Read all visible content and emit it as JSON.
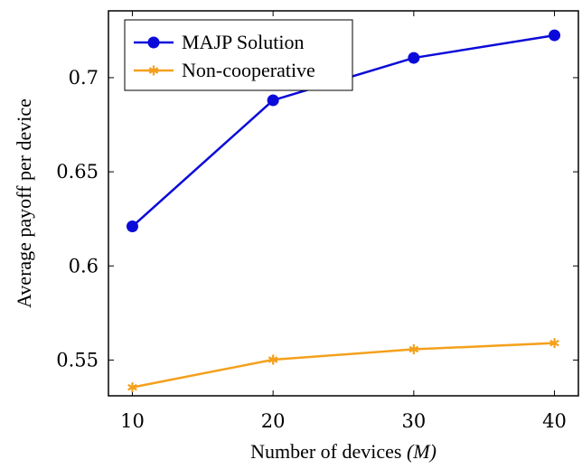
{
  "chart_data": {
    "type": "line",
    "title": "",
    "xlabel": "Number of devices",
    "xlabel_symbol": "(M)",
    "ylabel": "Average payoff per device",
    "x": [
      10,
      20,
      30,
      40
    ],
    "xlim": [
      8.3,
      41.7
    ],
    "ylim": [
      0.531,
      0.7355
    ],
    "xticks": [
      10,
      20,
      30,
      40
    ],
    "yticks": [
      0.55,
      0.6,
      0.65,
      0.7
    ],
    "ytick_labels": [
      "0.55",
      "0.6",
      "0.65",
      "0.7"
    ],
    "legend_position": "top-left",
    "grid": false,
    "series": [
      {
        "name": "MAJP Solution",
        "values": [
          0.621,
          0.688,
          0.7105,
          0.7225
        ],
        "color": "#0b0bd9",
        "marker": "circle"
      },
      {
        "name": "Non-cooperative",
        "values": [
          0.5355,
          0.5502,
          0.5557,
          0.559
        ],
        "color": "#f4a01c",
        "marker": "asterisk"
      }
    ]
  }
}
